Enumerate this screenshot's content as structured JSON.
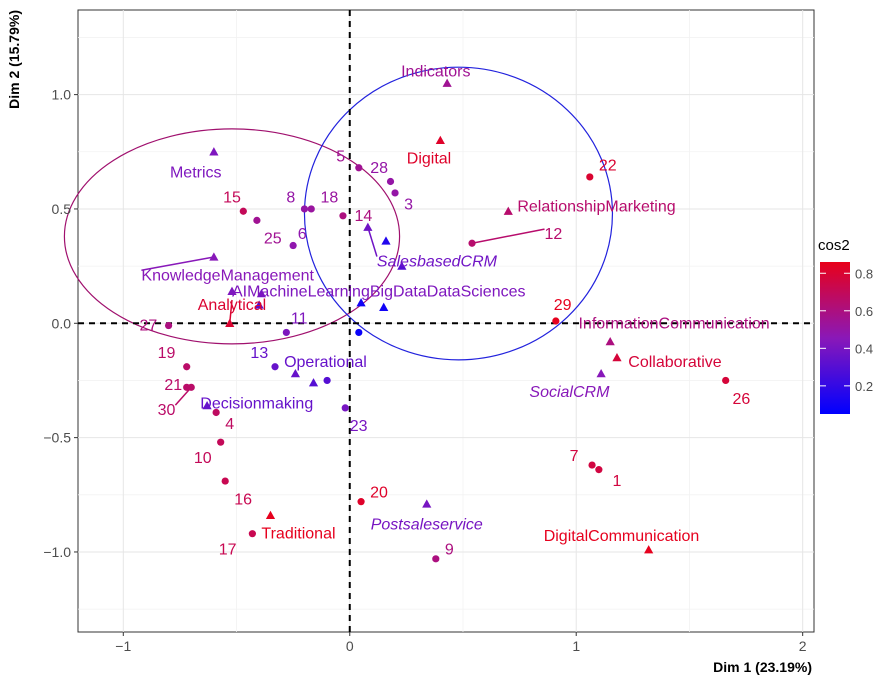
{
  "chart_data": {
    "type": "scatter",
    "xlabel": "Dim 1 (23.19%)",
    "ylabel": "Dim 2 (15.79%)",
    "xlim": [
      -1.2,
      2.05
    ],
    "ylim": [
      -1.35,
      1.37
    ],
    "x_ticks": [
      -1,
      0,
      1,
      2
    ],
    "y_ticks": [
      -1.0,
      -0.5,
      0.0,
      0.5,
      1.0
    ],
    "x_tick_labels": [
      "−1",
      "0",
      "1",
      "2"
    ],
    "y_tick_labels": [
      "−1.0",
      "−0.5",
      "0.0",
      "0.5",
      "1.0"
    ],
    "grid": true,
    "legend": {
      "title": "cos2",
      "position": "right",
      "ticks": [
        0.2,
        0.4,
        0.6,
        0.8
      ],
      "tick_labels": [
        "0.2",
        "0.4",
        "0.6",
        "0.8"
      ],
      "range": [
        0.05,
        0.86
      ],
      "colors": {
        "low": "#0000ff",
        "high": "#e8001a"
      }
    },
    "ellipses": [
      {
        "cx": -0.52,
        "cy": 0.38,
        "rx": 0.74,
        "ry": 0.47,
        "color": "#a0106e"
      },
      {
        "cx": 0.48,
        "cy": 0.48,
        "rx": 0.68,
        "ry": 0.64,
        "color": "#2222dd"
      }
    ],
    "series": [
      {
        "marker": "circle",
        "points": [
          {
            "label": "1",
            "x": 1.1,
            "y": -0.64,
            "cos2": 0.76,
            "lx": 1.16,
            "ly": -0.69,
            "anchor": "start"
          },
          {
            "label": "3",
            "x": 0.2,
            "y": 0.57,
            "cos2": 0.5,
            "lx": 0.24,
            "ly": 0.52,
            "anchor": "start"
          },
          {
            "label": "4",
            "x": -0.59,
            "y": -0.39,
            "cos2": 0.68,
            "lx": -0.55,
            "ly": -0.44,
            "anchor": "start"
          },
          {
            "label": "5",
            "x": 0.04,
            "y": 0.68,
            "cos2": 0.55,
            "lx": -0.04,
            "ly": 0.73,
            "anchor": "middle"
          },
          {
            "label": "6",
            "x": -0.25,
            "y": 0.34,
            "cos2": 0.48,
            "lx": -0.21,
            "ly": 0.39,
            "anchor": "middle"
          },
          {
            "label": "7",
            "x": 1.07,
            "y": -0.62,
            "cos2": 0.76,
            "lx": 1.01,
            "ly": -0.58,
            "anchor": "end"
          },
          {
            "label": "8",
            "x": -0.2,
            "y": 0.5,
            "cos2": 0.5,
            "lx": -0.26,
            "ly": 0.55,
            "anchor": "middle"
          },
          {
            "label": "9",
            "x": 0.38,
            "y": -1.03,
            "cos2": 0.6,
            "lx": 0.42,
            "ly": -0.99,
            "anchor": "start"
          },
          {
            "label": "10",
            "x": -0.57,
            "y": -0.52,
            "cos2": 0.7,
            "lx": -0.61,
            "ly": -0.59,
            "anchor": "end"
          },
          {
            "label": "11",
            "x": -0.28,
            "y": -0.04,
            "cos2": 0.42,
            "lx": -0.26,
            "ly": 0.02,
            "anchor": "start"
          },
          {
            "label": "12",
            "x": 0.54,
            "y": 0.35,
            "cos2": 0.65,
            "lx": 0.86,
            "ly": 0.39,
            "anchor": "start",
            "line": true
          },
          {
            "label": "13",
            "x": -0.33,
            "y": -0.19,
            "cos2": 0.35,
            "lx": -0.36,
            "ly": -0.13,
            "anchor": "end"
          },
          {
            "label": "14",
            "x": -0.03,
            "y": 0.47,
            "cos2": 0.6,
            "lx": 0.06,
            "ly": 0.47,
            "anchor": "middle"
          },
          {
            "label": "15",
            "x": -0.47,
            "y": 0.49,
            "cos2": 0.7,
            "lx": -0.52,
            "ly": 0.55,
            "anchor": "middle"
          },
          {
            "label": "16",
            "x": -0.55,
            "y": -0.69,
            "cos2": 0.72,
            "lx": -0.51,
            "ly": -0.77,
            "anchor": "start"
          },
          {
            "label": "17",
            "x": -0.43,
            "y": -0.92,
            "cos2": 0.72,
            "lx": -0.5,
            "ly": -0.99,
            "anchor": "end"
          },
          {
            "label": "18",
            "x": -0.17,
            "y": 0.5,
            "cos2": 0.52,
            "lx": -0.09,
            "ly": 0.55,
            "anchor": "middle"
          },
          {
            "label": "19",
            "x": -0.72,
            "y": -0.19,
            "cos2": 0.66,
            "lx": -0.77,
            "ly": -0.13,
            "anchor": "end"
          },
          {
            "label": "20",
            "x": 0.05,
            "y": -0.78,
            "cos2": 0.82,
            "lx": 0.09,
            "ly": -0.74,
            "anchor": "start"
          },
          {
            "label": "21",
            "x": -0.72,
            "y": -0.28,
            "cos2": 0.66,
            "lx": -0.74,
            "ly": -0.27,
            "anchor": "end"
          },
          {
            "label": "22",
            "x": 1.06,
            "y": 0.64,
            "cos2": 0.8,
            "lx": 1.1,
            "ly": 0.69,
            "anchor": "start"
          },
          {
            "label": "23",
            "x": -0.02,
            "y": -0.37,
            "cos2": 0.4,
            "lx": 0.0,
            "ly": -0.45,
            "anchor": "start"
          },
          {
            "label": "25",
            "x": -0.41,
            "y": 0.45,
            "cos2": 0.55,
            "lx": -0.34,
            "ly": 0.37,
            "anchor": "middle"
          },
          {
            "label": "26",
            "x": 1.66,
            "y": -0.25,
            "cos2": 0.78,
            "lx": 1.69,
            "ly": -0.33,
            "anchor": "start"
          },
          {
            "label": "27",
            "x": -0.8,
            "y": -0.01,
            "cos2": 0.6,
            "lx": -0.85,
            "ly": -0.01,
            "anchor": "end"
          },
          {
            "label": "28",
            "x": 0.18,
            "y": 0.62,
            "cos2": 0.5,
            "lx": 0.13,
            "ly": 0.68,
            "anchor": "middle"
          },
          {
            "label": "29",
            "x": 0.91,
            "y": 0.01,
            "cos2": 0.85,
            "lx": 0.94,
            "ly": 0.08,
            "anchor": "middle"
          },
          {
            "label": "30",
            "x": -0.7,
            "y": -0.28,
            "cos2": 0.66,
            "lx": -0.77,
            "ly": -0.38,
            "anchor": "end",
            "line": true
          },
          {
            "label": "",
            "x": 0.04,
            "y": -0.04,
            "cos2": 0.08
          },
          {
            "label": "",
            "x": -0.1,
            "y": -0.25,
            "cos2": 0.3
          }
        ]
      },
      {
        "marker": "triangle",
        "points": [
          {
            "label": "Indicators",
            "x": 0.43,
            "y": 1.05,
            "cos2": 0.55,
            "lx": 0.38,
            "ly": 1.1,
            "anchor": "middle"
          },
          {
            "label": "Digital",
            "x": 0.4,
            "y": 0.8,
            "cos2": 0.82,
            "lx": 0.35,
            "ly": 0.72,
            "anchor": "middle"
          },
          {
            "label": "RelationshipMarketing",
            "x": 0.7,
            "y": 0.49,
            "cos2": 0.65,
            "lx": 0.74,
            "ly": 0.51,
            "anchor": "start"
          },
          {
            "label": "Metrics",
            "x": -0.6,
            "y": 0.75,
            "cos2": 0.42,
            "lx": -0.68,
            "ly": 0.66,
            "anchor": "middle"
          },
          {
            "label": "SalesbasedCRM",
            "x": 0.08,
            "y": 0.42,
            "cos2": 0.38,
            "lx": 0.12,
            "ly": 0.27,
            "anchor": "start",
            "italic": true,
            "line": true
          },
          {
            "label": "KnowledgeManagement",
            "x": -0.6,
            "y": 0.29,
            "cos2": 0.45,
            "lx": -0.92,
            "ly": 0.21,
            "anchor": "start",
            "line": true
          },
          {
            "label": "AIMachineLearningBigDataDataSciences",
            "x": -0.52,
            "y": 0.14,
            "cos2": 0.42,
            "lx": -0.52,
            "ly": 0.14,
            "anchor": "start"
          },
          {
            "label": "Analytical",
            "x": -0.53,
            "y": 0.0,
            "cos2": 0.8,
            "lx": -0.52,
            "ly": 0.08,
            "anchor": "middle",
            "line": true
          },
          {
            "label": "InformationCommunication",
            "x": 1.15,
            "y": -0.08,
            "cos2": 0.6,
            "lx": 1.01,
            "ly": 0.0,
            "anchor": "start"
          },
          {
            "label": "Collaborative",
            "x": 1.18,
            "y": -0.15,
            "cos2": 0.78,
            "lx": 1.23,
            "ly": -0.17,
            "anchor": "start"
          },
          {
            "label": "SocialCRM",
            "x": 1.11,
            "y": -0.22,
            "cos2": 0.45,
            "lx": 0.97,
            "ly": -0.3,
            "anchor": "middle",
            "italic": true
          },
          {
            "label": "Operational",
            "x": -0.24,
            "y": -0.22,
            "cos2": 0.35,
            "lx": -0.29,
            "ly": -0.17,
            "anchor": "start"
          },
          {
            "label": "Decisionmaking",
            "x": -0.63,
            "y": -0.36,
            "cos2": 0.35,
            "lx": -0.66,
            "ly": -0.35,
            "anchor": "start"
          },
          {
            "label": "Postsaleservice",
            "x": 0.34,
            "y": -0.79,
            "cos2": 0.4,
            "lx": 0.34,
            "ly": -0.88,
            "anchor": "middle",
            "italic": true
          },
          {
            "label": "Traditional",
            "x": -0.35,
            "y": -0.84,
            "cos2": 0.85,
            "lx": -0.39,
            "ly": -0.92,
            "anchor": "start"
          },
          {
            "label": "DigitalCommunication",
            "x": 1.32,
            "y": -0.99,
            "cos2": 0.85,
            "lx": 1.2,
            "ly": -0.93,
            "anchor": "middle"
          },
          {
            "label": "",
            "x": -0.39,
            "y": 0.13,
            "cos2": 0.4
          },
          {
            "label": "",
            "x": -0.4,
            "y": 0.08,
            "cos2": 0.3
          },
          {
            "label": "",
            "x": 0.16,
            "y": 0.36,
            "cos2": 0.15
          },
          {
            "label": "",
            "x": 0.23,
            "y": 0.25,
            "cos2": 0.3
          },
          {
            "label": "",
            "x": 0.05,
            "y": 0.09,
            "cos2": 0.1
          },
          {
            "label": "",
            "x": 0.15,
            "y": 0.07,
            "cos2": 0.1
          },
          {
            "label": "",
            "x": -0.16,
            "y": -0.26,
            "cos2": 0.3
          }
        ]
      }
    ]
  }
}
